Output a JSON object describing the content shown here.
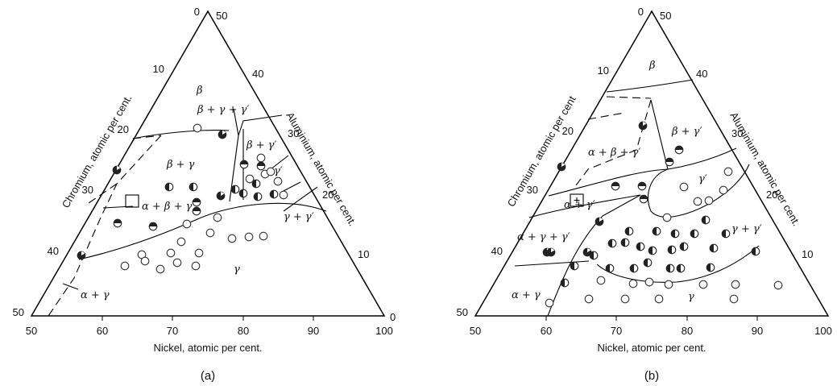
{
  "diagrams": [
    {
      "caption": "(a)",
      "ni_label": "Nickel, atomic per cent.",
      "cr_label": "Chromium, atomic per cent.",
      "al_label": "Aluminium, atomic per cent.",
      "ni_ticks": [
        "50",
        "60",
        "70",
        "80",
        "90",
        "100"
      ],
      "cr_ticks": [
        "0",
        "10",
        "20",
        "30",
        "40",
        "50"
      ],
      "al_ticks": [
        "50",
        "40",
        "30",
        "20",
        "10",
        "0"
      ],
      "phases": {
        "beta": "β",
        "beta_gamma_gammap": "β + γ + γ′",
        "beta_gamma": "β + γ",
        "beta_gammap": "β + γ′",
        "gammap": "γ′",
        "alpha_beta_gamma": "α + β + γ",
        "gamma_gammap": "γ + γ′",
        "gamma": "γ",
        "alpha_gamma": "α + γ"
      }
    },
    {
      "caption": "(b)",
      "ni_label": "Nickel, atomic per cent.",
      "cr_label": "Chromium, atomic per cent",
      "al_label": "Aluminium, atomic per cent.",
      "ni_ticks": [
        "50",
        "60",
        "70",
        "80",
        "90",
        "100"
      ],
      "cr_ticks": [
        "0",
        "10",
        "20",
        "30",
        "40",
        "50"
      ],
      "al_ticks": [
        "50",
        "40",
        "30",
        "20",
        "10",
        "0"
      ],
      "phases": {
        "beta": "β",
        "beta_gammap": "β + γ′",
        "alpha_beta_gammap": "α + β + γ′",
        "gammap": "γ′",
        "alpha_gammap": "α + γ′",
        "gamma_gammap": "γ + γ′",
        "alpha_gamma_gammap": "α + γ + γ′",
        "alpha_gamma": "α + γ",
        "gamma": "γ"
      }
    }
  ]
}
